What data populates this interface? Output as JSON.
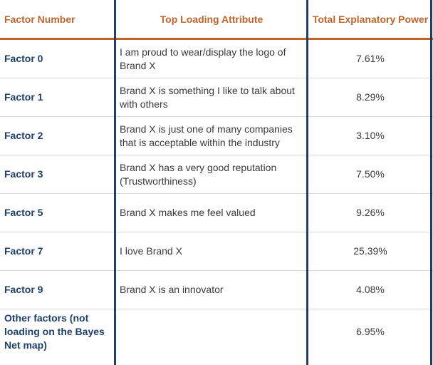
{
  "headers": {
    "factor_number": "Factor Number",
    "top_loading_attribute": "Top Loading Attribute",
    "total_explanatory_power": "Total Explanatory Power"
  },
  "rows": [
    {
      "factor": "Factor 0",
      "attribute": "I am proud to wear/display the logo of Brand X",
      "power": "7.61%"
    },
    {
      "factor": "Factor 1",
      "attribute": "Brand X is something I like to talk about with others",
      "power": "8.29%"
    },
    {
      "factor": "Factor 2",
      "attribute": "Brand X is just one of many companies that is acceptable within the industry",
      "power": "3.10%"
    },
    {
      "factor": "Factor 3",
      "attribute": "Brand X has a very good reputation (Trustworthiness)",
      "power": "7.50%"
    },
    {
      "factor": "Factor 5",
      "attribute": "Brand X makes me feel valued",
      "power": "9.26%"
    },
    {
      "factor": "Factor 7",
      "attribute": "I love Brand X",
      "power": "25.39%"
    },
    {
      "factor": "Factor 9",
      "attribute": "Brand X is an innovator",
      "power": "4.08%"
    },
    {
      "factor": "Other factors (not loading on the Bayes Net map)",
      "attribute": "",
      "power": "6.95%"
    }
  ],
  "colors": {
    "header_text": "#c0642a",
    "header_rule": "#c0642a",
    "factor_text": "#1f3f6a",
    "column_rule": "#1f3f6a",
    "body_text": "#3a3a3a",
    "row_rule": "#d7d7d7"
  }
}
